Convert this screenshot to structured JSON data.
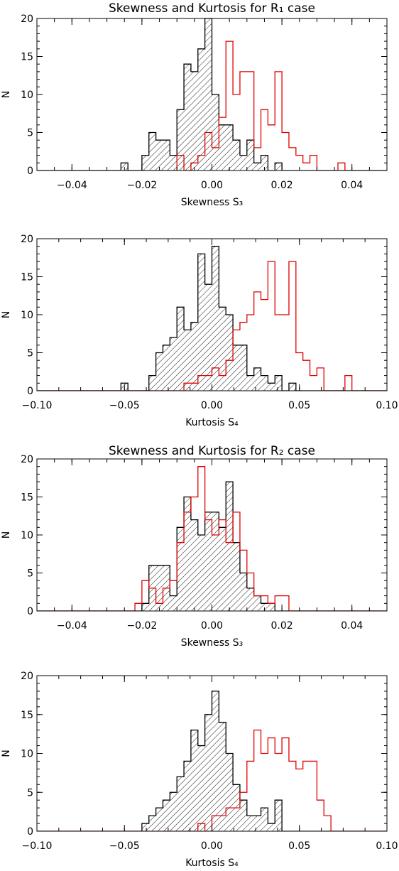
{
  "figure": {
    "titles": [
      "Skewness and Kurtosis for R₁ case",
      "Skewness and Kurtosis for R₂ case"
    ]
  },
  "colors": {
    "axes": "#000000",
    "observed_series": "#000000",
    "second_series": "#e00000"
  },
  "chart_data": [
    {
      "type": "histogram",
      "title": "Skewness and Kurtosis for R₁ case",
      "xlabel": "Skewness S₃",
      "ylabel": "N",
      "xlim": [
        -0.05,
        0.05
      ],
      "ylim": [
        0,
        20
      ],
      "xticks": [
        "−0.04",
        "−0.02",
        "0.00",
        "0.02",
        "0.04"
      ],
      "yticks": [
        "0",
        "5",
        "10",
        "15",
        "20"
      ],
      "grid": false,
      "bin_width": 0.002,
      "series": [
        {
          "color": "#000000",
          "hatched": true,
          "x": [
            -0.026,
            -0.024,
            -0.022,
            -0.02,
            -0.018,
            -0.016,
            -0.014,
            -0.012,
            -0.01,
            -0.008,
            -0.006,
            -0.004,
            -0.002,
            0.0,
            0.002,
            0.004,
            0.006,
            0.008,
            0.01,
            0.012,
            0.014,
            0.016,
            0.018,
            0.02
          ],
          "values": [
            1,
            0,
            0,
            2,
            5,
            4,
            4,
            2,
            8,
            14,
            13,
            16,
            20,
            10,
            6,
            6,
            4,
            2,
            4,
            1,
            2,
            0,
            1,
            0
          ]
        },
        {
          "color": "#e00000",
          "hatched": false,
          "x": [
            -0.01,
            -0.008,
            -0.006,
            -0.004,
            -0.002,
            0.0,
            0.002,
            0.004,
            0.006,
            0.008,
            0.01,
            0.012,
            0.014,
            0.016,
            0.018,
            0.02,
            0.022,
            0.024,
            0.026,
            0.028,
            0.03,
            0.032,
            0.034,
            0.036
          ],
          "values": [
            2,
            0,
            1,
            2,
            5,
            3,
            7,
            17,
            10,
            13,
            13,
            3,
            8,
            6,
            13,
            5,
            3,
            2,
            1,
            2,
            0,
            0,
            0,
            1
          ]
        }
      ]
    },
    {
      "type": "histogram",
      "xlabel": "Kurtosis S₄",
      "ylabel": "N",
      "xlim": [
        -0.1,
        0.1
      ],
      "ylim": [
        0,
        20
      ],
      "xticks": [
        "−0.10",
        "−0.05",
        "0.00",
        "0.05",
        "0.10"
      ],
      "yticks": [
        "0",
        "5",
        "10",
        "15",
        "20"
      ],
      "grid": false,
      "bin_width": 0.004,
      "series": [
        {
          "color": "#000000",
          "hatched": true,
          "x": [
            -0.052,
            -0.048,
            -0.044,
            -0.04,
            -0.036,
            -0.032,
            -0.028,
            -0.024,
            -0.02,
            -0.016,
            -0.012,
            -0.008,
            -0.004,
            0.0,
            0.004,
            0.008,
            0.012,
            0.016,
            0.02,
            0.024,
            0.028,
            0.032,
            0.036,
            0.04,
            0.044
          ],
          "values": [
            1,
            0,
            0,
            0,
            2,
            5,
            6,
            7,
            11,
            8,
            9,
            18,
            14,
            19,
            11,
            10,
            6,
            6,
            2,
            3,
            2,
            1,
            2,
            0,
            1
          ]
        },
        {
          "color": "#e00000",
          "hatched": false,
          "x": [
            -0.016,
            -0.012,
            -0.008,
            -0.004,
            0.0,
            0.004,
            0.008,
            0.012,
            0.016,
            0.02,
            0.024,
            0.028,
            0.032,
            0.036,
            0.04,
            0.044,
            0.048,
            0.052,
            0.056,
            0.06,
            0.064,
            0.068,
            0.072,
            0.076
          ],
          "values": [
            1,
            1,
            2,
            2,
            3,
            2,
            4,
            8,
            9,
            10,
            13,
            12,
            17,
            10,
            10,
            17,
            5,
            4,
            2,
            3,
            0,
            0,
            0,
            2
          ]
        }
      ]
    },
    {
      "type": "histogram",
      "title": "Skewness and Kurtosis for R₂ case",
      "xlabel": "Skewness S₃",
      "ylabel": "N",
      "xlim": [
        -0.05,
        0.05
      ],
      "ylim": [
        0,
        20
      ],
      "xticks": [
        "−0.04",
        "−0.02",
        "0.00",
        "0.02",
        "0.04"
      ],
      "yticks": [
        "0",
        "5",
        "10",
        "15",
        "20"
      ],
      "grid": false,
      "bin_width": 0.002,
      "series": [
        {
          "color": "#000000",
          "hatched": true,
          "x": [
            -0.02,
            -0.018,
            -0.016,
            -0.014,
            -0.012,
            -0.01,
            -0.008,
            -0.006,
            -0.004,
            -0.002,
            0.0,
            0.002,
            0.004,
            0.006,
            0.008,
            0.01,
            0.012,
            0.014,
            0.016,
            0.018
          ],
          "values": [
            1,
            6,
            6,
            6,
            2,
            11,
            15,
            12,
            10,
            13,
            13,
            11,
            17,
            9,
            5,
            3,
            2,
            1,
            1,
            0
          ]
        },
        {
          "color": "#e00000",
          "hatched": false,
          "x": [
            -0.022,
            -0.02,
            -0.018,
            -0.016,
            -0.014,
            -0.012,
            -0.01,
            -0.008,
            -0.006,
            -0.004,
            -0.002,
            0.0,
            0.002,
            0.004,
            0.006,
            0.008,
            0.01,
            0.012,
            0.014,
            0.016,
            0.018,
            0.02,
            0.022
          ],
          "values": [
            1,
            4,
            3,
            1,
            3,
            4,
            9,
            13,
            15,
            19,
            12,
            10,
            12,
            9,
            13,
            8,
            5,
            2,
            2,
            1,
            2,
            2,
            0
          ]
        }
      ]
    },
    {
      "type": "histogram",
      "xlabel": "Kurtosis S₄",
      "ylabel": "N",
      "xlim": [
        -0.1,
        0.1
      ],
      "ylim": [
        0,
        20
      ],
      "xticks": [
        "−0.10",
        "−0.05",
        "0.00",
        "0.05",
        "0.10"
      ],
      "yticks": [
        "0",
        "5",
        "10",
        "15",
        "20"
      ],
      "grid": false,
      "bin_width": 0.004,
      "series": [
        {
          "color": "#000000",
          "hatched": true,
          "x": [
            -0.04,
            -0.036,
            -0.032,
            -0.028,
            -0.024,
            -0.02,
            -0.016,
            -0.012,
            -0.008,
            -0.004,
            0.0,
            0.004,
            0.008,
            0.012,
            0.016,
            0.02,
            0.024,
            0.028,
            0.032,
            0.036,
            0.04
          ],
          "values": [
            1,
            2,
            3,
            4,
            5,
            7,
            9,
            13,
            11,
            15,
            18,
            14,
            10,
            6,
            4,
            2,
            2,
            3,
            1,
            4,
            0
          ]
        },
        {
          "color": "#e00000",
          "hatched": false,
          "x": [
            -0.008,
            -0.004,
            0.0,
            0.004,
            0.008,
            0.012,
            0.016,
            0.02,
            0.024,
            0.028,
            0.032,
            0.036,
            0.04,
            0.044,
            0.048,
            0.052,
            0.056,
            0.06,
            0.064,
            0.068
          ],
          "values": [
            1,
            0,
            2,
            2,
            3,
            3,
            5,
            9,
            13,
            10,
            12,
            10,
            12,
            9,
            8,
            9,
            9,
            4,
            2,
            0
          ]
        }
      ]
    }
  ]
}
